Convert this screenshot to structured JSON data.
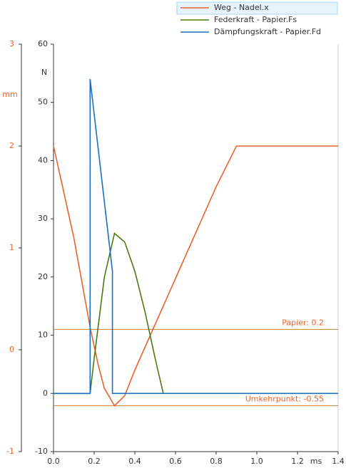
{
  "chart_data": {
    "type": "line",
    "x_label": "ms",
    "y_label": "N",
    "y2_label": "mm",
    "xlim": [
      0,
      1.4
    ],
    "xticks": [
      {
        "value": 0,
        "label": "0.0"
      },
      0.2,
      0.4,
      0.6,
      0.8,
      {
        "value": 1,
        "label": "1.0"
      },
      1.2,
      1.4
    ],
    "ylim": [
      -10,
      60
    ],
    "yticks": [
      -10,
      0,
      10,
      20,
      30,
      40,
      50,
      60
    ],
    "y2lim": [
      -1,
      3
    ],
    "y2ticks": [
      -1,
      0,
      1,
      2,
      3
    ],
    "y2color": "#e8622c",
    "series": [
      {
        "name": "Weg - Nadel.x",
        "color": "#e8622c",
        "axis": "y2",
        "x": [
          0,
          0.05,
          0.1,
          0.15,
          0.18,
          0.22,
          0.25,
          0.3,
          0.35,
          0.4,
          0.5,
          0.6,
          0.7,
          0.8,
          0.9,
          1.4
        ],
        "values": [
          2.0,
          1.55,
          1.1,
          0.55,
          0.22,
          -0.15,
          -0.38,
          -0.55,
          -0.45,
          -0.2,
          0.25,
          0.7,
          1.15,
          1.6,
          2.0,
          2.0
        ]
      },
      {
        "name": "Federkraft - Papier.Fs",
        "color": "#4a7a10",
        "x": [
          0,
          0.18,
          0.2,
          0.25,
          0.3,
          0.35,
          0.4,
          0.45,
          0.5,
          0.54
        ],
        "values": [
          0,
          0,
          6,
          20,
          27.5,
          26,
          21,
          14,
          6,
          0
        ]
      },
      {
        "name": "Dämpfungskraft - Papier.Fd",
        "color": "#1a6fbf",
        "x": [
          0,
          0.18,
          0.18,
          0.29,
          0.29,
          1.4
        ],
        "values": [
          0,
          0,
          54,
          21,
          0,
          0
        ]
      }
    ],
    "annotations": [
      {
        "label": "Papier:  0.2",
        "value": 0.2,
        "axis": "y2"
      },
      {
        "label": "Umkehrpunkt: -0.55",
        "value": -0.55,
        "axis": "y2"
      }
    ],
    "legend": "top-right",
    "selected_legend": 0
  }
}
